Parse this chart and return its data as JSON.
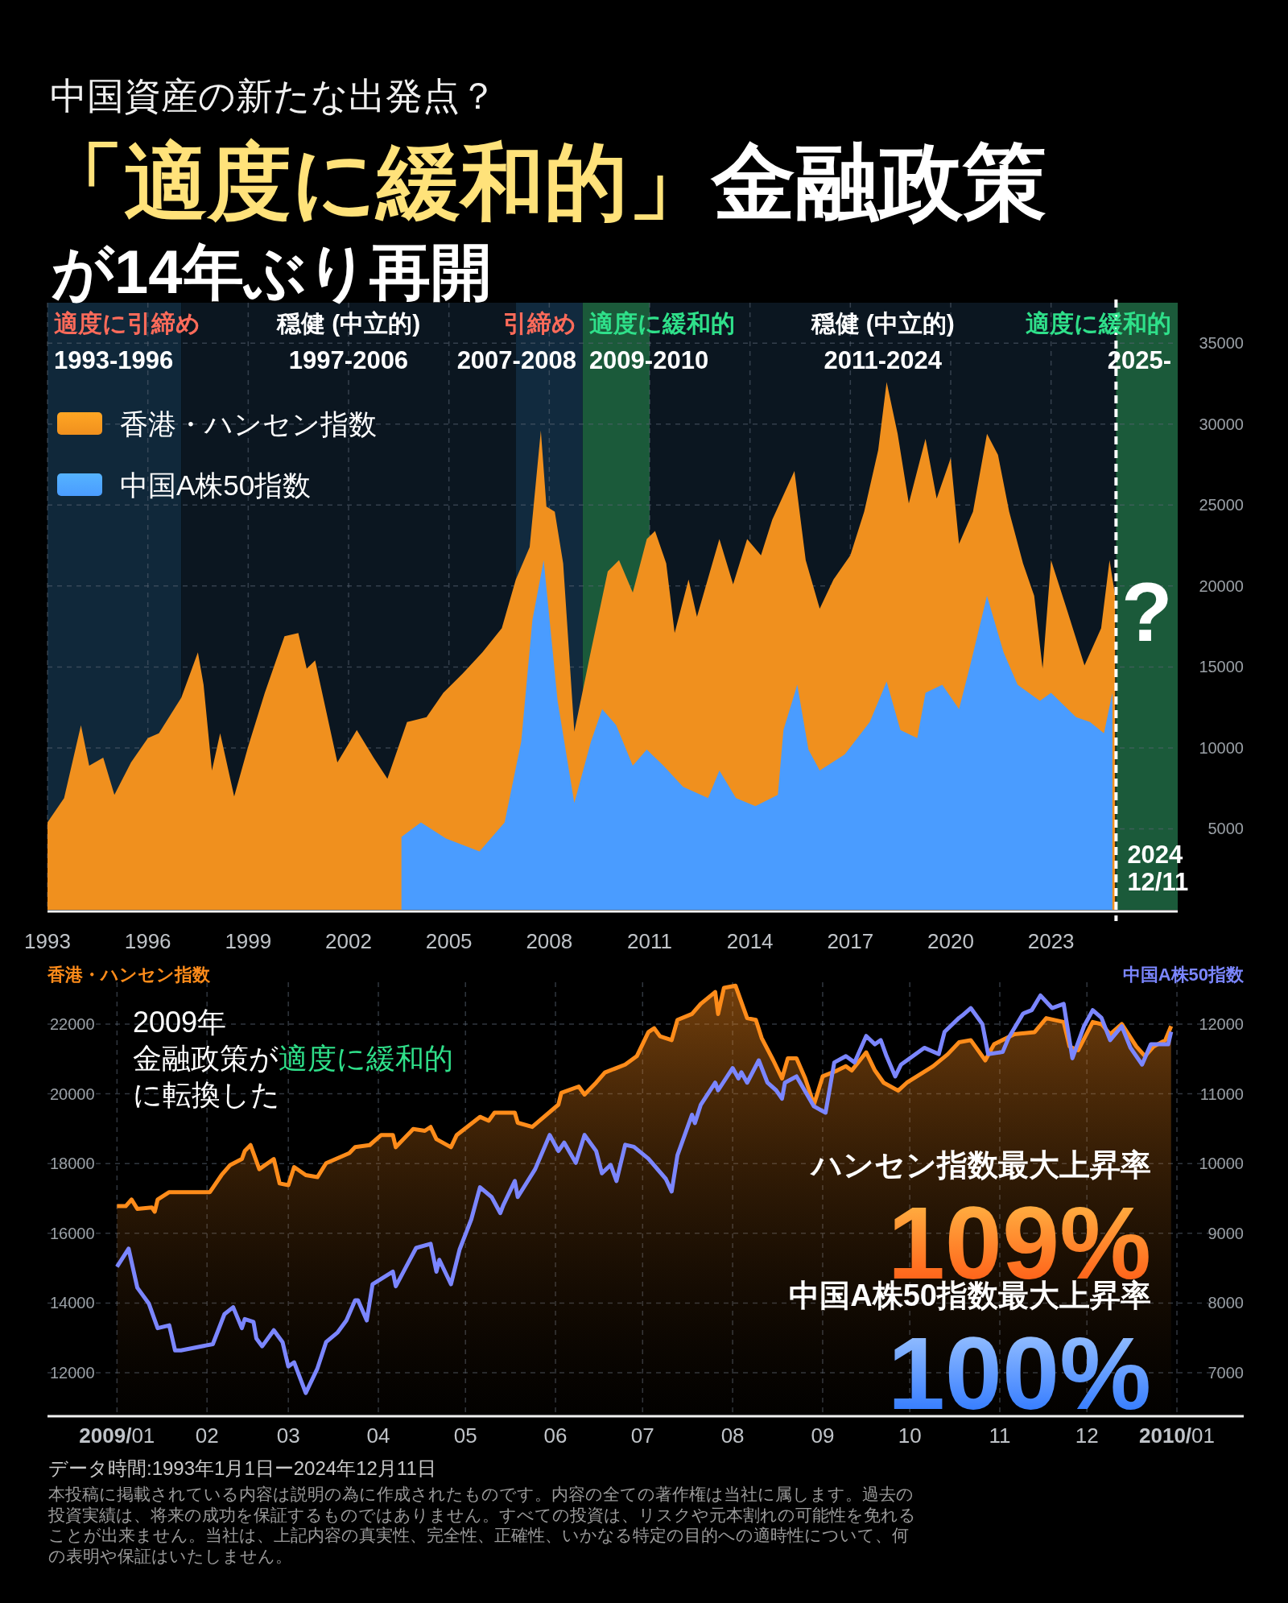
{
  "chart_data": [
    {
      "type": "area",
      "subtitle": "中国資産の新たな出発点？",
      "title": "「適度に緩和的」金融政策が14年ぶり再開",
      "xlim": [
        "1993-01-01",
        "2026-10-15"
      ],
      "xticks": [
        "1993",
        "1996",
        "1999",
        "2002",
        "2005",
        "2008",
        "2011",
        "2014",
        "2017",
        "2020",
        "2023"
      ],
      "ylim": [
        0,
        37500
      ],
      "yticks": [
        5000,
        10000,
        15000,
        20000,
        25000,
        30000,
        35000
      ],
      "grid": true,
      "legend": "top left",
      "bands": [
        {
          "axis": "x",
          "from": "1993-01-01",
          "to": "1997-01-01",
          "label": "適度に引締め\n1993-1996",
          "color": "#10283a"
        },
        {
          "axis": "x",
          "from": "1997-01-01",
          "to": "2007-01-01",
          "label": "穏健 (中立的)\n1997-2006",
          "color": "#0b1620"
        },
        {
          "axis": "x",
          "from": "2007-01-01",
          "to": "2009-01-01",
          "label": "引締め\n2007-2008",
          "color": "#112a3e"
        },
        {
          "axis": "x",
          "from": "2009-01-01",
          "to": "2011-01-01",
          "label": "適度に緩和的\n2009-2010",
          "color": "#1b5a3a"
        },
        {
          "axis": "x",
          "from": "2011-01-01",
          "to": "2024-12-11",
          "label": "穏健 (中立的)\n2011-2024",
          "color": "#0b1620"
        },
        {
          "axis": "x",
          "from": "2024-12-11",
          "to": "2026-10-15",
          "label": "適度に緩和的\n2025-",
          "color": "#1b5a3a"
        }
      ],
      "ref_lines": [
        {
          "axis": "x",
          "value": "2024-12-11",
          "label": "2024\n12/11",
          "color": "#ffffff",
          "line_style": "dashed"
        }
      ],
      "annotations": [
        "?"
      ],
      "series": [
        {
          "name": "香港・ハンセン指数",
          "color": "#f0901e",
          "x": [
            "1993-01",
            "1993-07",
            "1994-01",
            "1994-04",
            "1994-09",
            "1995-01",
            "1995-07",
            "1996-01",
            "1996-05",
            "1997-01",
            "1997-07",
            "1997-09",
            "1997-12",
            "1998-03",
            "1998-08",
            "1999-01",
            "1999-07",
            "2000-02",
            "2000-07",
            "2000-10",
            "2001-01",
            "2001-09",
            "2002-04",
            "2002-10",
            "2003-03",
            "2003-10",
            "2004-05",
            "2004-11",
            "2005-06",
            "2006-01",
            "2006-08",
            "2007-01",
            "2007-06",
            "2007-10",
            "2007-12",
            "2008-03",
            "2008-06",
            "2008-10",
            "2009-04",
            "2009-10",
            "2010-02",
            "2010-07",
            "2010-12",
            "2011-03",
            "2011-07",
            "2011-10",
            "2012-03",
            "2012-06",
            "2013-02",
            "2013-07",
            "2013-12",
            "2014-05",
            "2014-09",
            "2015-05",
            "2015-09",
            "2016-02",
            "2016-07",
            "2017-01",
            "2017-06",
            "2017-11",
            "2018-02",
            "2018-06",
            "2018-10",
            "2019-04",
            "2019-08",
            "2020-01",
            "2020-04",
            "2020-09",
            "2021-02",
            "2021-06",
            "2021-10",
            "2022-03",
            "2022-07",
            "2022-10",
            "2023-01",
            "2023-07",
            "2024-01",
            "2024-07",
            "2024-10",
            "2024-12"
          ],
          "values": [
            5400,
            6900,
            11400,
            8900,
            9400,
            7100,
            9100,
            10600,
            10900,
            13100,
            15900,
            13900,
            8600,
            10900,
            7000,
            10100,
            13400,
            16900,
            17100,
            14900,
            15400,
            9100,
            11100,
            9400,
            8100,
            11600,
            11900,
            13400,
            14600,
            15900,
            17400,
            20400,
            22400,
            29600,
            24900,
            24600,
            21400,
            11000,
            16000,
            20900,
            21600,
            19600,
            22900,
            23400,
            21400,
            17100,
            20400,
            18100,
            22900,
            20100,
            22900,
            21900,
            24100,
            27100,
            21600,
            18600,
            20400,
            21900,
            24600,
            28400,
            32600,
            29400,
            25100,
            29100,
            25400,
            27900,
            22600,
            24600,
            29400,
            28100,
            24600,
            21400,
            19400,
            14900,
            21600,
            18400,
            15100,
            17400,
            21600,
            19400
          ]
        },
        {
          "name": "中国A株50指数",
          "color": "#4a9cff",
          "x": [
            "2003-08",
            "2004-03",
            "2004-12",
            "2005-12",
            "2006-09",
            "2007-03",
            "2007-07",
            "2007-11",
            "2008-04",
            "2008-10",
            "2009-04",
            "2009-08",
            "2010-01",
            "2010-07",
            "2010-12",
            "2011-06",
            "2012-01",
            "2012-10",
            "2013-02",
            "2013-08",
            "2014-03",
            "2014-11",
            "2015-01",
            "2015-06",
            "2015-10",
            "2016-02",
            "2016-11",
            "2017-08",
            "2018-02",
            "2018-07",
            "2019-01",
            "2019-04",
            "2019-10",
            "2020-04",
            "2020-08",
            "2021-02",
            "2021-08",
            "2022-01",
            "2022-09",
            "2023-01",
            "2023-10",
            "2024-03",
            "2024-08",
            "2024-11"
          ],
          "values": [
            4500,
            5400,
            4400,
            3600,
            5400,
            10400,
            17900,
            21600,
            12900,
            6600,
            10400,
            12400,
            11400,
            8900,
            9900,
            8900,
            7600,
            6900,
            8600,
            6900,
            6400,
            7100,
            11100,
            13900,
            9900,
            8600,
            9600,
            11600,
            14100,
            11100,
            10600,
            13400,
            13900,
            12400,
            15100,
            19400,
            15900,
            13900,
            12900,
            13400,
            11900,
            11600,
            10900,
            13400
          ]
        }
      ]
    },
    {
      "type": "line",
      "ylabel": "香港・ハンセン指数",
      "y2label": "中国A株50指数",
      "xlim": [
        "2008-12-08",
        "2010-01-24"
      ],
      "xticks": [
        {
          "value": "2009-01",
          "label": "**2009/**01"
        },
        {
          "value": "2009-02",
          "label": "02"
        },
        {
          "value": "2009-03",
          "label": "03"
        },
        {
          "value": "2009-04",
          "label": "04"
        },
        {
          "value": "2009-05",
          "label": "05"
        },
        {
          "value": "2009-06",
          "label": "06"
        },
        {
          "value": "2009-07",
          "label": "07"
        },
        {
          "value": "2009-08",
          "label": "08"
        },
        {
          "value": "2009-09",
          "label": "09"
        },
        {
          "value": "2009-10",
          "label": "10"
        },
        {
          "value": "2009-11",
          "label": "11"
        },
        {
          "value": "2009-12",
          "label": "12"
        },
        {
          "value": "2010-01",
          "label": "**2010/**01"
        }
      ],
      "ylim": [
        10800,
        23200
      ],
      "yticks": [
        12000,
        14000,
        16000,
        18000,
        20000,
        22000
      ],
      "y2lim": [
        6400,
        12600
      ],
      "y2ticks": [
        7000,
        8000,
        9000,
        10000,
        11000,
        12000
      ],
      "grid": true,
      "annotations": [
        "2009年",
        "金融政策が",
        "適度に緩和的",
        "に転換した",
        "ハンセン指数最大上昇率",
        "109%",
        "中国A株50指数最大上昇率",
        "100%",
        "データ時間:1993年1月1日ー2024年12月11日",
        "本投稿に掲載されている内容は説明の為に作成されたものです。内容の全ての著作権は当社に属します。過去の投資実績は、将来の成功を保証するものではありません。すべての投資は、リスクや元本割れの可能性を免れることが出来ません。当社は、上記内容の真実性、完全性、正確性、いかなる特定の目的への適時性について、何の表明や保証はいたしません。"
      ],
      "series": [
        {
          "type": "area",
          "color": "#ff8c1a",
          "x": [
            "2009-01-01",
            "2009-01-04",
            "2009-01-06",
            "2009-01-08",
            "2009-01-13",
            "2009-01-14",
            "2009-01-15",
            "2009-01-19",
            "2009-01-21",
            "2009-02-02",
            "2009-02-06",
            "2009-02-09",
            "2009-02-13",
            "2009-02-14",
            "2009-02-16",
            "2009-02-19",
            "2009-02-24",
            "2009-02-26",
            "2009-03-01",
            "2009-03-03",
            "2009-03-07",
            "2009-03-11",
            "2009-03-14",
            "2009-03-22",
            "2009-03-24",
            "2009-03-29",
            "2009-04-02",
            "2009-04-06",
            "2009-04-07",
            "2009-04-13",
            "2009-04-17",
            "2009-04-19",
            "2009-04-21",
            "2009-04-26",
            "2009-04-28",
            "2009-05-06",
            "2009-05-09",
            "2009-05-11",
            "2009-05-18",
            "2009-05-19",
            "2009-05-24",
            "2009-06-02",
            "2009-06-03",
            "2009-06-09",
            "2009-06-11",
            "2009-06-15",
            "2009-06-18",
            "2009-06-25",
            "2009-06-29",
            "2009-07-03",
            "2009-07-05",
            "2009-07-07",
            "2009-07-11",
            "2009-07-13",
            "2009-07-18",
            "2009-07-21",
            "2009-07-26",
            "2009-07-27",
            "2009-07-29",
            "2009-08-02",
            "2009-08-06",
            "2009-08-09",
            "2009-08-11",
            "2009-08-15",
            "2009-08-18",
            "2009-08-20",
            "2009-08-23",
            "2009-08-26",
            "2009-08-29",
            "2009-09-01",
            "2009-09-06",
            "2009-09-09",
            "2009-09-11",
            "2009-09-16",
            "2009-09-19",
            "2009-09-22",
            "2009-09-27",
            "2009-09-30",
            "2009-10-09",
            "2009-10-14",
            "2009-10-18",
            "2009-10-22",
            "2009-10-27",
            "2009-10-30",
            "2009-11-06",
            "2009-11-13",
            "2009-11-17",
            "2009-11-23",
            "2009-11-25",
            "2009-11-28",
            "2009-12-03",
            "2009-12-06",
            "2009-12-09",
            "2009-12-13",
            "2009-12-18",
            "2009-12-21",
            "2009-12-24",
            "2009-12-28",
            "2009-12-30"
          ],
          "values": [
            16780,
            16780,
            16970,
            16700,
            16740,
            16620,
            16970,
            17180,
            17180,
            17180,
            17670,
            17960,
            18130,
            18360,
            18530,
            17840,
            18130,
            17430,
            17380,
            17900,
            17670,
            17610,
            18010,
            18300,
            18470,
            18530,
            18820,
            18820,
            18470,
            18990,
            18940,
            19050,
            18700,
            18470,
            18820,
            19340,
            19230,
            19460,
            19460,
            19170,
            19050,
            19690,
            20030,
            20210,
            19980,
            20320,
            20610,
            20840,
            21080,
            21770,
            21880,
            21650,
            21540,
            22120,
            22290,
            22580,
            22920,
            22290,
            23040,
            23100,
            22170,
            22120,
            21600,
            20960,
            20440,
            21020,
            21020,
            20440,
            19690,
            20500,
            20670,
            20790,
            20670,
            21190,
            20670,
            20320,
            20090,
            20320,
            20790,
            21130,
            21480,
            21540,
            20960,
            21420,
            21710,
            21770,
            22170,
            22060,
            21360,
            21250,
            22060,
            22000,
            21710,
            22000,
            21360,
            21080,
            21360,
            21540,
            21940
          ]
        },
        {
          "axis": "y2",
          "color": "#7b86ff",
          "x": [
            "2009-01-01",
            "2009-01-05",
            "2009-01-08",
            "2009-01-12",
            "2009-01-15",
            "2009-01-19",
            "2009-01-21",
            "2009-01-23",
            "2009-02-03",
            "2009-02-07",
            "2009-02-10",
            "2009-02-13",
            "2009-02-14",
            "2009-02-17",
            "2009-02-18",
            "2009-02-20",
            "2009-02-24",
            "2009-02-27",
            "2009-03-01",
            "2009-03-03",
            "2009-03-07",
            "2009-03-11",
            "2009-03-14",
            "2009-03-18",
            "2009-03-21",
            "2009-03-24",
            "2009-03-25",
            "2009-03-28",
            "2009-03-30",
            "2009-04-06",
            "2009-04-07",
            "2009-04-14",
            "2009-04-19",
            "2009-04-21",
            "2009-04-22",
            "2009-04-26",
            "2009-04-29",
            "2009-05-03",
            "2009-05-06",
            "2009-05-10",
            "2009-05-13",
            "2009-05-14",
            "2009-05-18",
            "2009-05-19",
            "2009-05-25",
            "2009-05-30",
            "2009-06-02",
            "2009-06-04",
            "2009-06-08",
            "2009-06-11",
            "2009-06-15",
            "2009-06-17",
            "2009-06-20",
            "2009-06-22",
            "2009-06-25",
            "2009-06-28",
            "2009-07-03",
            "2009-07-09",
            "2009-07-11",
            "2009-07-13",
            "2009-07-18",
            "2009-07-19",
            "2009-07-21",
            "2009-07-26",
            "2009-07-27",
            "2009-08-01",
            "2009-08-03",
            "2009-08-04",
            "2009-08-06",
            "2009-08-10",
            "2009-08-13",
            "2009-08-16",
            "2009-08-18",
            "2009-08-19",
            "2009-08-23",
            "2009-08-29",
            "2009-09-02",
            "2009-09-05",
            "2009-09-09",
            "2009-09-12",
            "2009-09-16",
            "2009-09-19",
            "2009-09-21",
            "2009-09-23",
            "2009-09-26",
            "2009-09-28",
            "2009-10-06",
            "2009-10-11",
            "2009-10-13",
            "2009-10-18",
            "2009-10-19",
            "2009-10-22",
            "2009-10-26",
            "2009-10-28",
            "2009-11-02",
            "2009-11-04",
            "2009-11-09",
            "2009-11-12",
            "2009-11-15",
            "2009-11-19",
            "2009-11-23",
            "2009-11-26",
            "2009-11-30",
            "2009-12-03",
            "2009-12-06",
            "2009-12-09",
            "2009-12-13",
            "2009-12-16",
            "2009-12-20",
            "2009-12-23",
            "2009-12-29",
            "2009-12-30"
          ],
          "values": [
            8520,
            8780,
            8220,
            7990,
            7640,
            7680,
            7320,
            7320,
            7410,
            7840,
            7940,
            7640,
            7770,
            7730,
            7490,
            7380,
            7610,
            7440,
            7090,
            7150,
            6710,
            7060,
            7440,
            7580,
            7750,
            8040,
            8040,
            7750,
            8270,
            8450,
            8240,
            8790,
            8850,
            8450,
            8620,
            8270,
            8770,
            9200,
            9660,
            9520,
            9290,
            9400,
            9750,
            9520,
            9920,
            10410,
            10180,
            10300,
            10010,
            10410,
            10180,
            9860,
            9980,
            9750,
            10270,
            10240,
            10070,
            9780,
            9600,
            10120,
            10700,
            10580,
            10840,
            11160,
            11050,
            11370,
            11220,
            11310,
            11160,
            11480,
            11160,
            11050,
            10930,
            11160,
            11250,
            10820,
            10730,
            11450,
            11540,
            11450,
            11830,
            11710,
            11770,
            11540,
            11250,
            11420,
            11660,
            11570,
            11890,
            12090,
            12120,
            12230,
            12000,
            11570,
            11600,
            11800,
            12150,
            12200,
            12410,
            12230,
            12290,
            11510,
            11970,
            12200,
            12090,
            11770,
            11970,
            11660,
            11420,
            11710,
            11710,
            11890
          ]
        }
      ]
    }
  ]
}
